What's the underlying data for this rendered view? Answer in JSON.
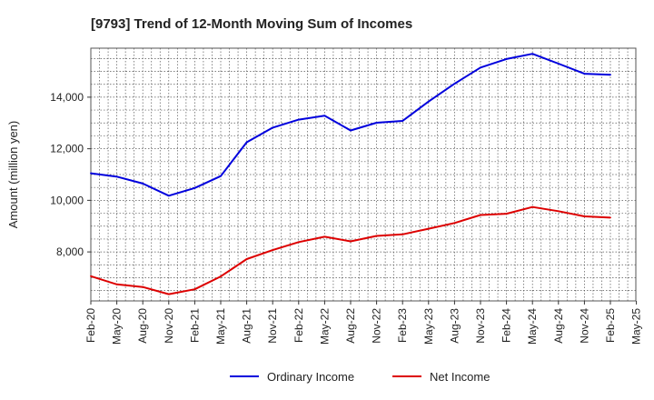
{
  "chart_data": {
    "type": "line",
    "title": "[9793]  Trend of 12-Month Moving Sum of Incomes",
    "xlabel": "",
    "ylabel": "Amount (million yen)",
    "ylim": [
      6100,
      15900
    ],
    "yticks": [
      8000,
      10000,
      12000,
      14000
    ],
    "ytick_labels": [
      "8,000",
      "10,000",
      "12,000",
      "14,000"
    ],
    "grid": true,
    "legend_position": "bottom-center",
    "categories": [
      "Feb-20",
      "May-20",
      "Aug-20",
      "Nov-20",
      "Feb-21",
      "May-21",
      "Aug-21",
      "Nov-21",
      "Feb-22",
      "May-22",
      "Aug-22",
      "Nov-22",
      "Feb-23",
      "May-23",
      "Aug-23",
      "Nov-23",
      "Feb-24",
      "May-24",
      "Aug-24",
      "Nov-24",
      "Feb-25",
      "May-25"
    ],
    "series": [
      {
        "name": "Ordinary Income",
        "color": "#0000dd",
        "values": [
          11050,
          10920,
          10650,
          10180,
          10480,
          10940,
          12250,
          12820,
          13130,
          13280,
          12710,
          13010,
          13080,
          13830,
          14520,
          15150,
          15480,
          15680,
          15300,
          14910,
          14870,
          null
        ]
      },
      {
        "name": "Net Income",
        "color": "#dd0000",
        "values": [
          7060,
          6740,
          6640,
          6360,
          6550,
          7050,
          7720,
          8070,
          8380,
          8590,
          8410,
          8620,
          8680,
          8900,
          9120,
          9430,
          9480,
          9740,
          9580,
          9380,
          9330,
          null
        ]
      }
    ]
  }
}
